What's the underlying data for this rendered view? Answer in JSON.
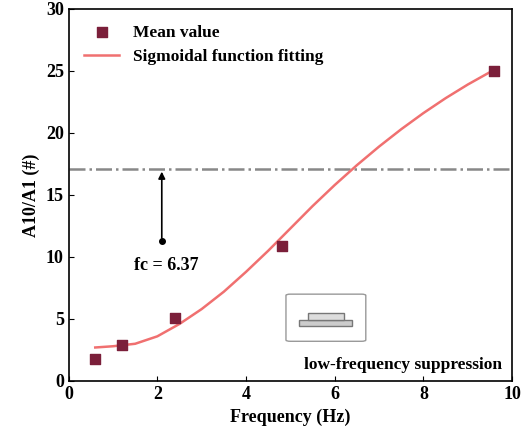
{
  "chart_data": {
    "type": "scatter",
    "xlabel": "Frequency (Hz)",
    "ylabel": "A10/A1 (#)",
    "xlim": [
      0,
      10
    ],
    "xticks": [
      0,
      2,
      4,
      6,
      8,
      10
    ],
    "ylim": [
      0,
      30
    ],
    "yticks": [
      0,
      5,
      10,
      15,
      20,
      25,
      30
    ],
    "legend": "upper left",
    "threshold": 17.1,
    "annotations": [
      "fc = 6.37",
      "low-frequency suppression"
    ],
    "series": [
      {
        "name": "Mean value",
        "type": "scatter",
        "marker": "square",
        "color": "#7b1f3a",
        "x": [
          0.6,
          1.2,
          2.4,
          4.8,
          9.6
        ],
        "values": [
          1.8,
          2.9,
          5.1,
          10.9,
          25.0
        ]
      },
      {
        "name": "Sigmoidal function fitting",
        "type": "line",
        "color": "#f07070",
        "x": [
          0.6,
          1.0,
          1.5,
          2.0,
          2.5,
          3.0,
          3.5,
          4.0,
          4.5,
          5.0,
          5.5,
          6.0,
          6.5,
          7.0,
          7.5,
          8.0,
          8.5,
          9.0,
          9.5
        ],
        "values": [
          2.7,
          2.8,
          3.0,
          3.6,
          4.6,
          5.8,
          7.2,
          8.8,
          10.5,
          12.3,
          14.1,
          15.8,
          17.4,
          18.9,
          20.3,
          21.6,
          22.8,
          23.9,
          24.9
        ]
      }
    ]
  }
}
